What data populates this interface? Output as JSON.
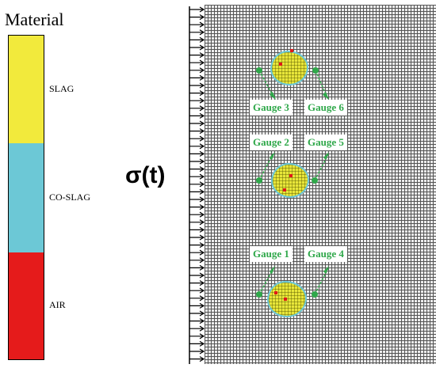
{
  "legend": {
    "title": "Material",
    "items": [
      {
        "label": "SLAG",
        "color": "#f2ea3c"
      },
      {
        "label": "CO-SLAG",
        "color": "#6cc8d6"
      },
      {
        "label": "AIR",
        "color": "#e51b1b"
      }
    ]
  },
  "load_label": "σ(t)",
  "gauges": [
    {
      "label": "Gauge 1"
    },
    {
      "label": "Gauge 2"
    },
    {
      "label": "Gauge 3"
    },
    {
      "label": "Gauge 4"
    },
    {
      "label": "Gauge 5"
    },
    {
      "label": "Gauge 6"
    }
  ],
  "colors": {
    "gauge": "#2fa84a",
    "mesh_line": "#555555"
  }
}
